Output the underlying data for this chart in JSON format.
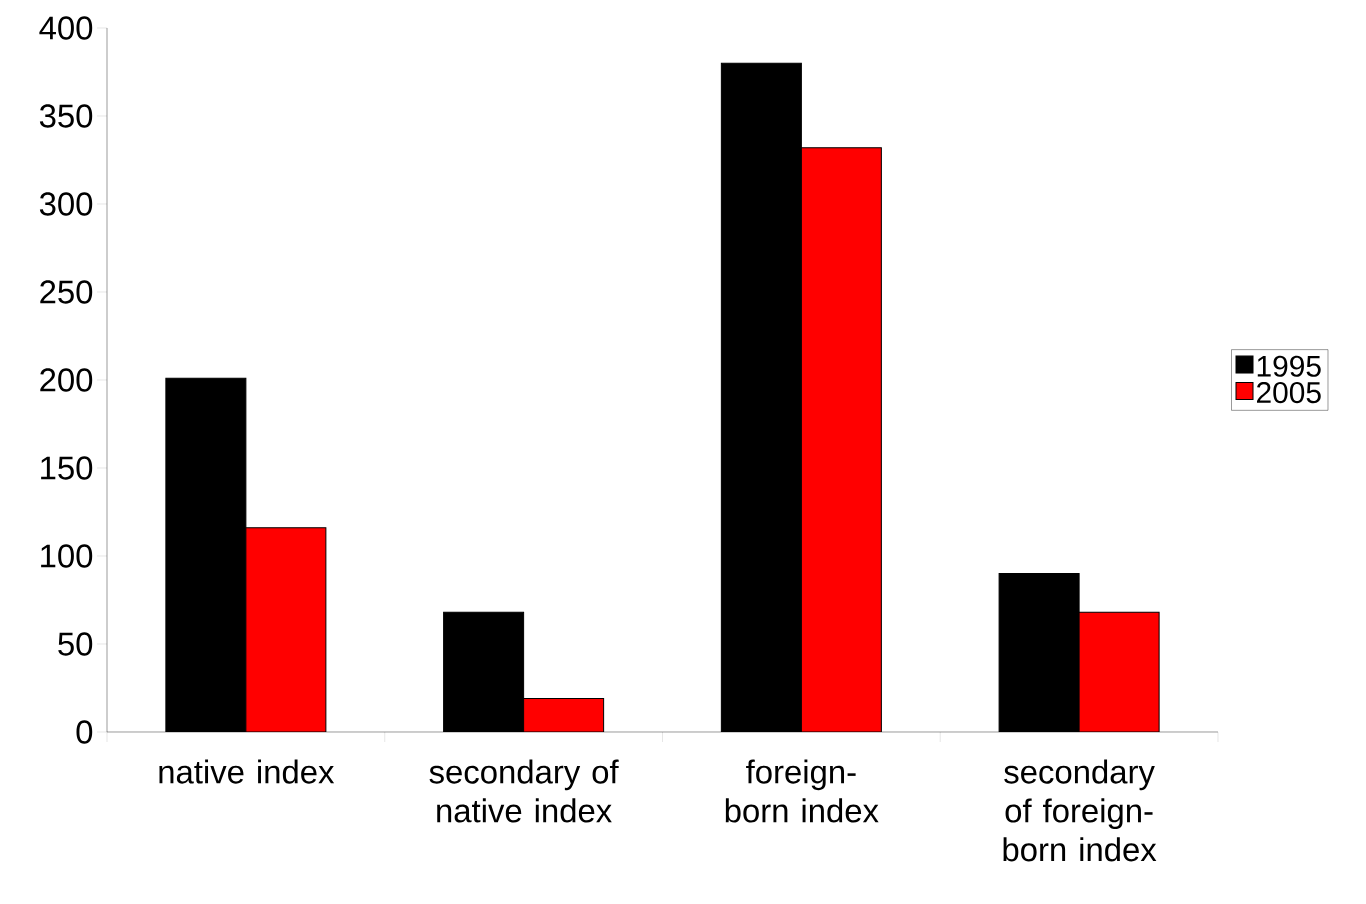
{
  "chart_data": {
    "type": "bar",
    "categories": [
      "native index",
      "secondary of native index",
      "foreign-born index",
      "secondary of foreign-born index"
    ],
    "series": [
      {
        "name": "1995",
        "color": "#000000",
        "values": [
          201,
          68,
          380,
          90
        ]
      },
      {
        "name": "2005",
        "color": "#ff0000",
        "values": [
          116,
          19,
          332,
          68
        ]
      }
    ],
    "ylim": [
      0,
      400
    ],
    "yticks": [
      0,
      50,
      100,
      150,
      200,
      250,
      300,
      350,
      400
    ],
    "grid": false,
    "legend": "right"
  }
}
